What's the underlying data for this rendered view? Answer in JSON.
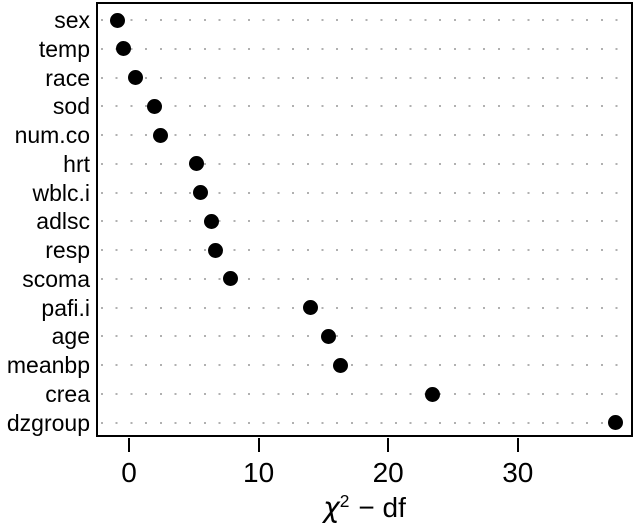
{
  "figure": {
    "background": "#ffffff",
    "border_color": "#000000",
    "point_color": "#000000",
    "grid_dot_color": "#b0b0b0",
    "text_color": "#000000"
  },
  "chart_data": {
    "type": "scatter",
    "variant": "dot-plot",
    "title": "",
    "xlabel": "χ² − df",
    "xlabel_parts": {
      "symbol": "χ",
      "superscript": "2",
      "suffix": "− df"
    },
    "ylabel": "",
    "categories": [
      "sex",
      "temp",
      "race",
      "sod",
      "num.co",
      "hrt",
      "wblc.i",
      "adlsc",
      "resp",
      "scoma",
      "pafi.i",
      "age",
      "meanbp",
      "crea",
      "dzgroup"
    ],
    "values": [
      -0.9,
      -0.4,
      0.5,
      2.0,
      2.4,
      5.2,
      5.5,
      6.4,
      6.7,
      7.8,
      14.0,
      15.4,
      16.3,
      23.4,
      37.5
    ],
    "xticks": [
      "0",
      "10",
      "20",
      "30"
    ],
    "xtick_values": [
      0,
      10,
      20,
      30
    ],
    "xlim": [
      -2.55,
      38.9
    ],
    "grid": "dotted-horizontal",
    "legend_position": "none"
  }
}
